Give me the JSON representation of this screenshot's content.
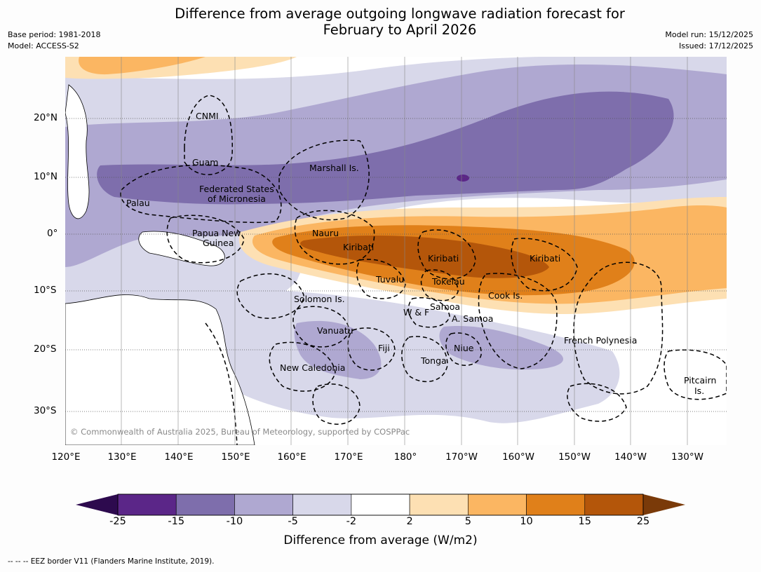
{
  "title_line1": "Difference from average outgoing longwave radiation forecast for",
  "title_line2": "February to April 2026",
  "base_period": "Base period: 1981-2018",
  "model": "Model: ACCESS-S2",
  "model_run": "Model run: 15/12/2025",
  "issued": "Issued: 17/12/2025",
  "lat_labels": [
    "20°N",
    "10°N",
    "0°",
    "10°S",
    "20°S",
    "30°S"
  ],
  "lon_labels": [
    "120°E",
    "130°E",
    "140°E",
    "150°E",
    "160°E",
    "170°E",
    "180°",
    "170°W",
    "160°W",
    "150°W",
    "140°W",
    "130°W"
  ],
  "places": {
    "cnmi": "CNMI",
    "guam": "Guam",
    "marshall": "Marshall Is.",
    "fsm1": "Federated States",
    "fsm2": "of Micronesia",
    "palau": "Palau",
    "png1": "Papua New",
    "png2": "Guinea",
    "nauru": "Nauru",
    "kiribati_w": "Kiribati",
    "kiribati_c": "Kiribati",
    "kiribati_e": "Kiribati",
    "tuvalu": "Tuvalu",
    "tokelau": "Tokelau",
    "cook": "Cook Is.",
    "solomon": "Solomon Is.",
    "wf": "W & F",
    "samoa": "Samoa",
    "asamoa": "A. Samoa",
    "vanuatu": "Vanuatu",
    "fiji": "Fiji",
    "niue": "Niue",
    "tonga": "Tonga",
    "newcal": "New Caledonia",
    "frenchpoly": "French Polynesia",
    "pitcairn1": "Pitcairn",
    "pitcairn2": "Is."
  },
  "credit": "© Commonwealth of Australia 2025, Bureau of Meteorology, supported by COSPPac",
  "colorbar": {
    "ticks": [
      "-25",
      "-15",
      "-10",
      "-5",
      "-2",
      "2",
      "5",
      "10",
      "15",
      "25"
    ],
    "colors": [
      "#5b2688",
      "#7e6eac",
      "#afa8d1",
      "#d8d8ea",
      "#ffffff",
      "#fde0b3",
      "#fbb662",
      "#e0801a",
      "#b4560a"
    ],
    "under_color": "#2d0a4e",
    "over_color": "#7a3a09",
    "title": "Difference from average (W/m2)"
  },
  "footer": "--  --  -- EEZ border V11 (Flanders Marine Institute, 2019)."
}
